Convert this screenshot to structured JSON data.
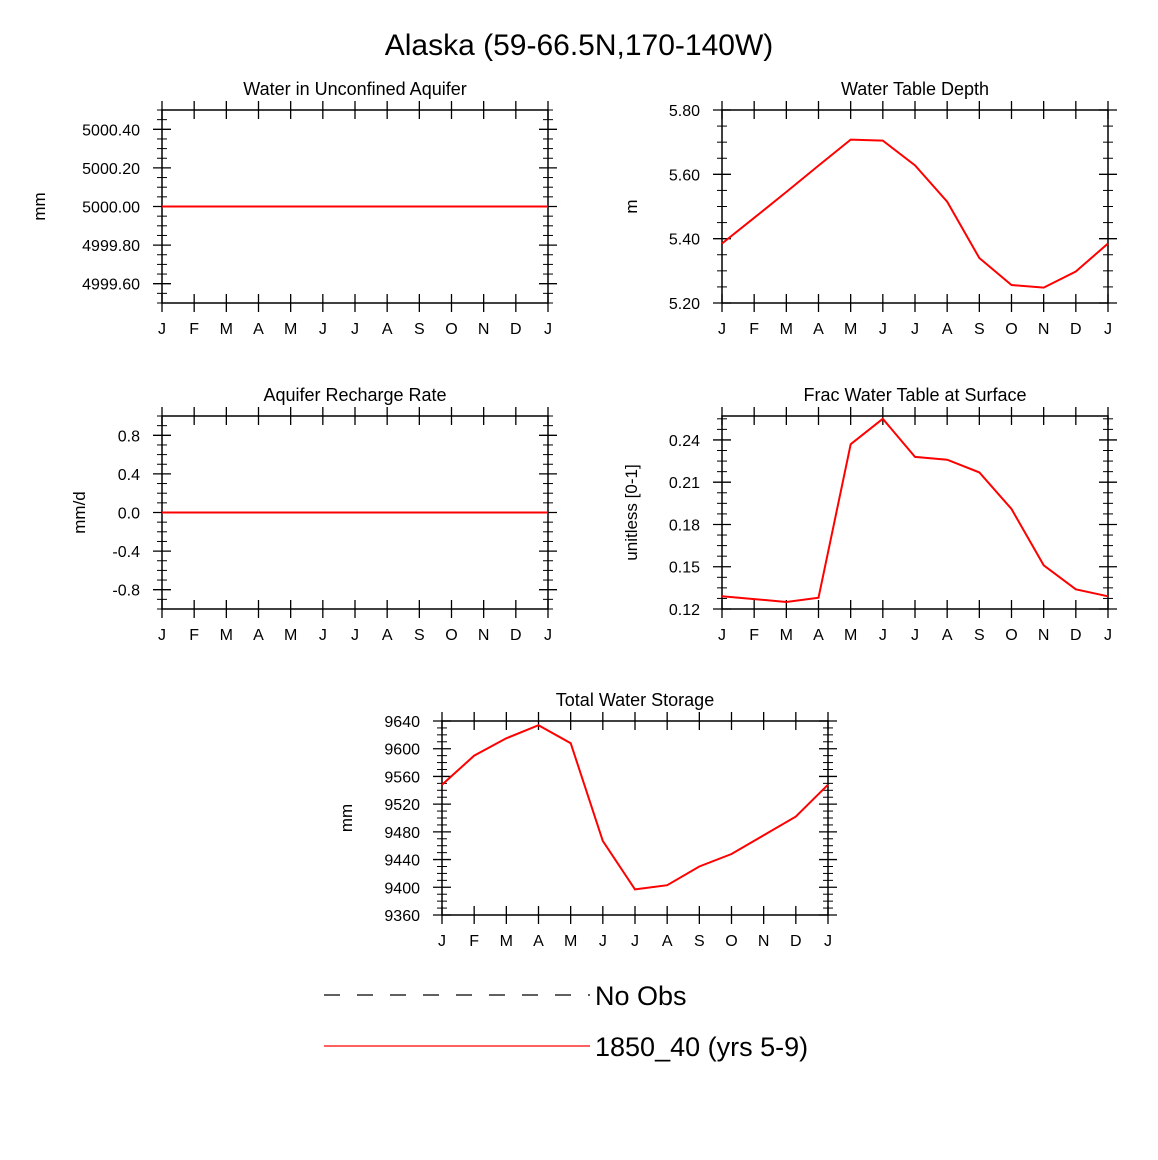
{
  "figure_title": "Alaska (59-66.5N,170-140W)",
  "colors": {
    "model": "#ff0000",
    "obs": "#000000",
    "axis": "#000000"
  },
  "legend": {
    "entries": [
      {
        "label": "No Obs",
        "style": "dashed",
        "color": "#000000"
      },
      {
        "label": "1850_40 (yrs 5-9)",
        "style": "solid",
        "color": "#ff0000"
      }
    ]
  },
  "chart_data": [
    {
      "id": "aquifer-water",
      "type": "line",
      "title": "Water in Unconfined Aquifer",
      "ylabel": "mm",
      "xlabel": "",
      "x_tick_labels": [
        "J",
        "F",
        "M",
        "A",
        "M",
        "J",
        "J",
        "A",
        "S",
        "O",
        "N",
        "D",
        "J"
      ],
      "ylim": [
        4999.5,
        5000.5
      ],
      "y_ticks": [
        4999.6,
        4999.8,
        5000.0,
        5000.2,
        5000.4
      ],
      "y_tick_labels": [
        "4999.60",
        "4999.80",
        "5000.00",
        "5000.20",
        "5000.40"
      ],
      "series": [
        {
          "name": "1850_40 (yrs 5-9)",
          "values": [
            5000.0,
            5000.0,
            5000.0,
            5000.0,
            5000.0,
            5000.0,
            5000.0,
            5000.0,
            5000.0,
            5000.0,
            5000.0,
            5000.0,
            5000.0
          ]
        }
      ]
    },
    {
      "id": "water-table-depth",
      "type": "line",
      "title": "Water Table Depth",
      "ylabel": "m",
      "xlabel": "",
      "x_tick_labels": [
        "J",
        "F",
        "M",
        "A",
        "M",
        "J",
        "J",
        "A",
        "S",
        "O",
        "N",
        "D",
        "J"
      ],
      "ylim": [
        5.2,
        5.8
      ],
      "y_ticks": [
        5.2,
        5.4,
        5.6,
        5.8
      ],
      "y_tick_labels": [
        "5.20",
        "5.40",
        "5.60",
        "5.80"
      ],
      "series": [
        {
          "name": "1850_40 (yrs 5-9)",
          "values": [
            5.385,
            5.465,
            5.545,
            5.627,
            5.708,
            5.705,
            5.628,
            5.515,
            5.34,
            5.256,
            5.248,
            5.298,
            5.385
          ]
        }
      ]
    },
    {
      "id": "recharge-rate",
      "type": "line",
      "title": "Aquifer Recharge Rate",
      "ylabel": "mm/d",
      "xlabel": "",
      "x_tick_labels": [
        "J",
        "F",
        "M",
        "A",
        "M",
        "J",
        "J",
        "A",
        "S",
        "O",
        "N",
        "D",
        "J"
      ],
      "ylim": [
        -1.0,
        1.0
      ],
      "y_ticks": [
        -0.8,
        -0.4,
        0.0,
        0.4,
        0.8
      ],
      "y_tick_labels": [
        "-0.8",
        "-0.4",
        "0.0",
        "0.4",
        "0.8"
      ],
      "series": [
        {
          "name": "1850_40 (yrs 5-9)",
          "values": [
            0,
            0,
            0,
            0,
            0,
            0,
            0,
            0,
            0,
            0,
            0,
            0,
            0
          ]
        }
      ]
    },
    {
      "id": "frac-water-table",
      "type": "line",
      "title": "Frac Water Table at Surface",
      "ylabel": "unitless [0-1]",
      "xlabel": "",
      "x_tick_labels": [
        "J",
        "F",
        "M",
        "A",
        "M",
        "J",
        "J",
        "A",
        "S",
        "O",
        "N",
        "D",
        "J"
      ],
      "ylim": [
        0.12,
        0.257
      ],
      "y_ticks": [
        0.12,
        0.15,
        0.18,
        0.21,
        0.24
      ],
      "y_tick_labels": [
        "0.12",
        "0.15",
        "0.18",
        "0.21",
        "0.24"
      ],
      "series": [
        {
          "name": "1850_40 (yrs 5-9)",
          "values": [
            0.129,
            0.127,
            0.125,
            0.128,
            0.237,
            0.255,
            0.228,
            0.226,
            0.217,
            0.191,
            0.151,
            0.134,
            0.129
          ]
        }
      ]
    },
    {
      "id": "total-water-storage",
      "type": "line",
      "title": "Total Water Storage",
      "ylabel": "mm",
      "xlabel": "",
      "x_tick_labels": [
        "J",
        "F",
        "M",
        "A",
        "M",
        "J",
        "J",
        "A",
        "S",
        "O",
        "N",
        "D",
        "J"
      ],
      "ylim": [
        9360,
        9640
      ],
      "y_ticks": [
        9360,
        9400,
        9440,
        9480,
        9520,
        9560,
        9600,
        9640
      ],
      "y_tick_labels": [
        "9360",
        "9400",
        "9440",
        "9480",
        "9520",
        "9560",
        "9600",
        "9640"
      ],
      "series": [
        {
          "name": "1850_40 (yrs 5-9)",
          "values": [
            9548,
            9590,
            9615,
            9634,
            9608,
            9467,
            9397,
            9403,
            9430,
            9448,
            9475,
            9502,
            9548
          ]
        }
      ]
    }
  ]
}
